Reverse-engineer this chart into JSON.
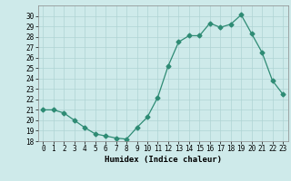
{
  "hours": [
    0,
    1,
    2,
    3,
    4,
    5,
    6,
    7,
    8,
    9,
    10,
    11,
    12,
    13,
    14,
    15,
    16,
    17,
    18,
    19,
    20,
    21,
    22,
    23
  ],
  "values": [
    21.0,
    21.0,
    20.7,
    20.0,
    19.3,
    18.7,
    18.5,
    18.3,
    18.2,
    19.3,
    20.3,
    22.2,
    25.2,
    27.5,
    28.1,
    28.1,
    29.3,
    28.9,
    29.2,
    30.1,
    28.3,
    26.5,
    23.8,
    22.5
  ],
  "line_color": "#2e8b74",
  "marker": "D",
  "marker_size": 2.5,
  "bg_color": "#ceeaea",
  "grid_color": "#afd4d4",
  "xlabel": "Humidex (Indice chaleur)",
  "ylim": [
    18,
    31
  ],
  "yticks": [
    18,
    19,
    20,
    21,
    22,
    23,
    24,
    25,
    26,
    27,
    28,
    29,
    30
  ],
  "xlim": [
    -0.5,
    23.5
  ],
  "xticks": [
    0,
    1,
    2,
    3,
    4,
    5,
    6,
    7,
    8,
    9,
    10,
    11,
    12,
    13,
    14,
    15,
    16,
    17,
    18,
    19,
    20,
    21,
    22,
    23
  ]
}
